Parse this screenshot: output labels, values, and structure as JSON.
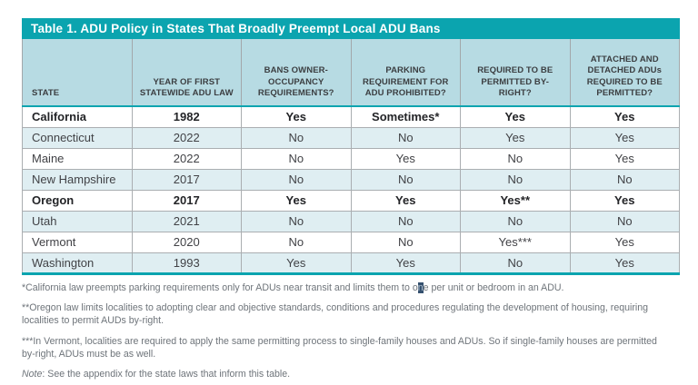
{
  "table": {
    "title": "Table 1. ADU Policy in States That Broadly Preempt Local ADU Bans",
    "columns": [
      "STATE",
      "YEAR OF FIRST STATEWIDE ADU LAW",
      "BANS OWNER-OCCUPANCY REQUIREMENTS?",
      "PARKING REQUIREMENT FOR ADU PROHIBITED?",
      "REQUIRED TO BE PERMITTED BY-RIGHT?",
      "ATTACHED AND DETACHED ADUs REQUIRED TO BE PERMITTED?"
    ],
    "rows": [
      {
        "cells": [
          "California",
          "1982",
          "Yes",
          "Sometimes*",
          "Yes",
          "Yes"
        ]
      },
      {
        "cells": [
          "Connecticut",
          "2022",
          "No",
          "No",
          "Yes",
          "Yes"
        ]
      },
      {
        "cells": [
          "Maine",
          "2022",
          "No",
          "Yes",
          "No",
          "Yes"
        ]
      },
      {
        "cells": [
          "New Hampshire",
          "2017",
          "No",
          "No",
          "No",
          "No"
        ]
      },
      {
        "cells": [
          "Oregon",
          "2017",
          "Yes",
          "Yes",
          "Yes**",
          "Yes"
        ]
      },
      {
        "cells": [
          "Utah",
          "2021",
          "No",
          "No",
          "No",
          "No"
        ]
      },
      {
        "cells": [
          "Vermont",
          "2020",
          "No",
          "No",
          "Yes***",
          "Yes"
        ]
      },
      {
        "cells": [
          "Washington",
          "1993",
          "Yes",
          "Yes",
          "No",
          "Yes"
        ]
      }
    ]
  },
  "footnotes": {
    "f1_before": "*California law preempts parking requirements only for ADUs near transit and limits them to o",
    "f1_highlight": "n",
    "f1_after": "e per unit or bedroom in an ADU.",
    "f2": "**Oregon law limits localities to adopting clear and objective standards, conditions and procedures regulating the development of housing, requiring localities to permit AUDs by-right.",
    "f3": "***In Vermont, localities are required to apply the same permitting process to single-family houses and ADUs. So if single-family houses are permitted by-right, ADUs must be as well.",
    "note_label": "Note",
    "note_rest": ": See the appendix for the state laws that inform this table."
  },
  "colors": {
    "accent_teal": "#0ba4af",
    "header_bg": "#b7dbe3",
    "stripe_bg": "#dfeef2",
    "body_text": "#414246",
    "footnote_text": "#6e747a",
    "highlight_bg": "#35516f"
  }
}
